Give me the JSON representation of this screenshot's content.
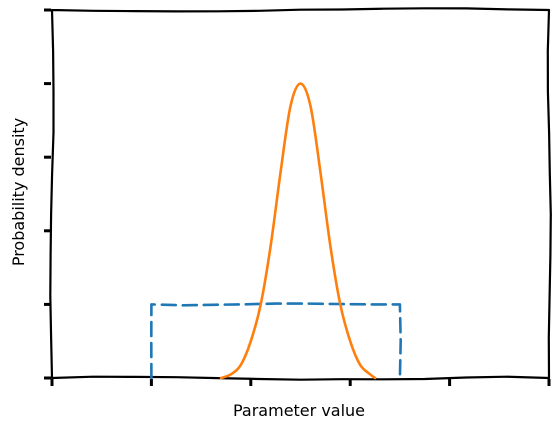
{
  "chart_data": {
    "type": "line",
    "title": "",
    "xlabel": "Parameter value",
    "ylabel": "Probability density",
    "xlim": [
      -2,
      3
    ],
    "ylim": [
      0,
      5
    ],
    "xticks": [
      -2,
      -1,
      0,
      1,
      2,
      3
    ],
    "yticks": [
      0,
      1,
      2,
      3,
      4,
      5
    ],
    "tick_labels_shown": false,
    "grid": false,
    "legend": "none",
    "style": "xkcd",
    "series": [
      {
        "id": "uniform",
        "color": "#1f77b4",
        "linestyle": "dashed",
        "points": [
          [
            -1.0,
            0.0
          ],
          [
            -1.0,
            1.0
          ],
          [
            1.5,
            1.0
          ],
          [
            1.5,
            0.0
          ]
        ]
      },
      {
        "id": "peaked",
        "color": "#ff7f0e",
        "linestyle": "solid",
        "points": [
          [
            -0.3,
            0.0
          ],
          [
            -0.2,
            0.05
          ],
          [
            -0.1,
            0.18
          ],
          [
            0.0,
            0.5
          ],
          [
            0.1,
            1.0
          ],
          [
            0.2,
            1.8
          ],
          [
            0.3,
            2.8
          ],
          [
            0.4,
            3.7
          ],
          [
            0.5,
            4.0
          ],
          [
            0.6,
            3.7
          ],
          [
            0.7,
            2.8
          ],
          [
            0.8,
            1.8
          ],
          [
            0.9,
            1.0
          ],
          [
            1.0,
            0.5
          ],
          [
            1.1,
            0.18
          ],
          [
            1.2,
            0.05
          ],
          [
            1.25,
            0.0
          ]
        ]
      }
    ]
  }
}
